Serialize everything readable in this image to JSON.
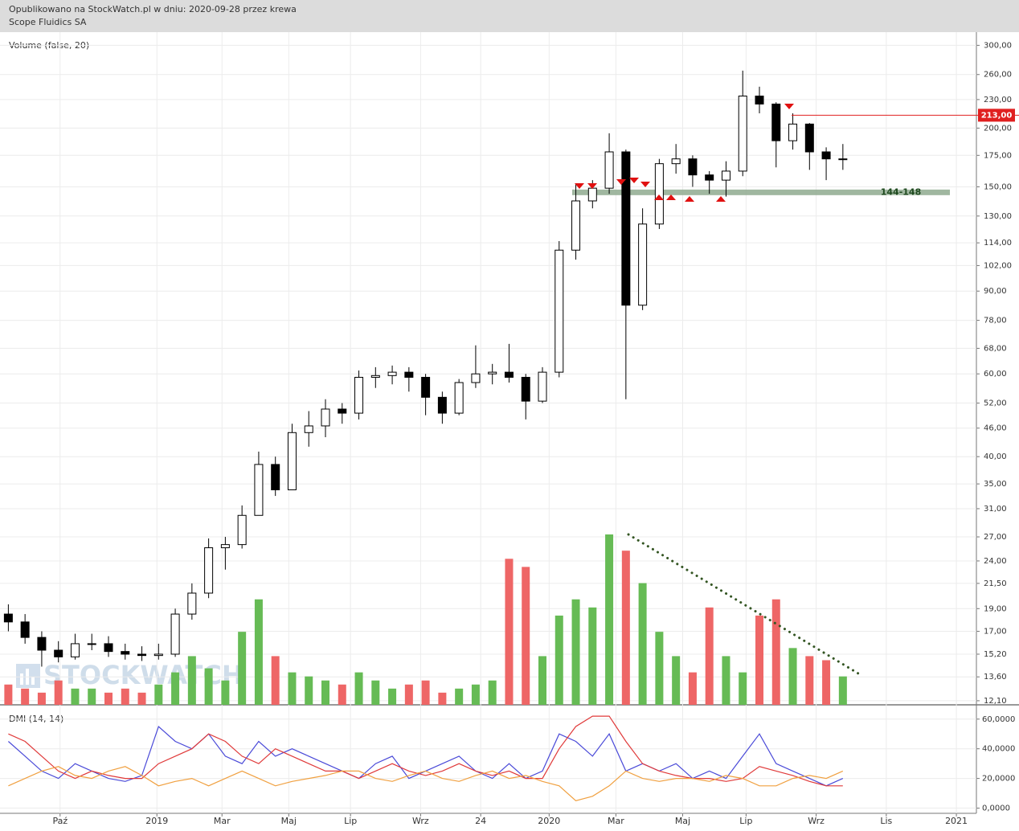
{
  "header": {
    "line1": "Opublikowano na StockWatch.pl w dniu: 2020-09-28 przez krewa",
    "line2": "Scope Fluidics SA"
  },
  "watermark": "STOCKWATCH",
  "chart_data": [
    {
      "type": "candlestick",
      "log": true,
      "grid": true,
      "xlim": [
        0,
        58.5
      ],
      "xticks": [
        {
          "value": 3.6,
          "label": "Paź"
        },
        {
          "value": 9.4,
          "label": "2019"
        },
        {
          "value": 13.3,
          "label": "Mar"
        },
        {
          "value": 17.3,
          "label": "Maj"
        },
        {
          "value": 21.0,
          "label": "Lip"
        },
        {
          "value": 25.2,
          "label": "Wrz"
        },
        {
          "value": 28.8,
          "label": "24"
        },
        {
          "value": 32.9,
          "label": "2020"
        },
        {
          "value": 36.9,
          "label": "Mar"
        },
        {
          "value": 40.9,
          "label": "Maj"
        },
        {
          "value": 44.7,
          "label": "Lip"
        },
        {
          "value": 48.9,
          "label": "Wrz"
        },
        {
          "value": 53.1,
          "label": "Lis"
        },
        {
          "value": 57.3,
          "label": "2021"
        }
      ],
      "ylim": [
        11.86,
        320
      ],
      "yticks": [
        {
          "value": 12.1,
          "label": "12,10"
        },
        {
          "value": 13.6,
          "label": "13,60"
        },
        {
          "value": 15.2,
          "label": "15,20"
        },
        {
          "value": 17,
          "label": "17,00"
        },
        {
          "value": 19,
          "label": "19,00"
        },
        {
          "value": 21.5,
          "label": "21,50"
        },
        {
          "value": 24,
          "label": "24,00"
        },
        {
          "value": 27,
          "label": "27,00"
        },
        {
          "value": 31,
          "label": "31,00"
        },
        {
          "value": 35,
          "label": "35,00"
        },
        {
          "value": 40,
          "label": "40,00"
        },
        {
          "value": 46,
          "label": "46,00"
        },
        {
          "value": 52,
          "label": "52,00"
        },
        {
          "value": 60,
          "label": "60,00"
        },
        {
          "value": 68,
          "label": "68,00"
        },
        {
          "value": 78,
          "label": "78,00"
        },
        {
          "value": 90,
          "label": "90,00"
        },
        {
          "value": 102,
          "label": "102,00"
        },
        {
          "value": 114,
          "label": "114,00"
        },
        {
          "value": 130,
          "label": "130,00"
        },
        {
          "value": 150,
          "label": "150,00"
        },
        {
          "value": 175,
          "label": "175,00"
        },
        {
          "value": 200,
          "label": "200,00"
        },
        {
          "value": 230,
          "label": "230,00"
        },
        {
          "value": 260,
          "label": "260,00"
        },
        {
          "value": 300,
          "label": "300,00"
        }
      ],
      "x": [
        0.5,
        1.5,
        2.5,
        3.5,
        4.5,
        5.5,
        6.5,
        7.5,
        8.5,
        9.5,
        10.5,
        11.5,
        12.5,
        13.5,
        14.5,
        15.5,
        16.5,
        17.5,
        18.5,
        19.5,
        20.5,
        21.5,
        22.5,
        23.5,
        24.5,
        25.5,
        26.5,
        27.5,
        28.5,
        29.5,
        30.5,
        31.5,
        32.5,
        33.5,
        34.5,
        35.5,
        36.5,
        37.5,
        38.5,
        39.5,
        40.5,
        41.5,
        42.5,
        43.5,
        44.5,
        45.5,
        46.5,
        47.5,
        48.5,
        49.5,
        50.5
      ],
      "open": [
        18.5,
        17.8,
        16.5,
        15.5,
        15.0,
        16.0,
        16.0,
        15.4,
        15.2,
        15.1,
        15.2,
        18.5,
        20.5,
        25.6,
        26,
        30,
        38.5,
        34,
        45,
        46.5,
        50.5,
        49.5,
        59,
        59.5,
        60.5,
        59,
        53.5,
        49.5,
        57.5,
        60,
        60.5,
        59,
        52.5,
        60.5,
        110,
        140,
        149,
        178,
        84,
        125,
        168,
        172,
        159,
        155,
        162,
        234,
        225,
        188,
        204,
        178,
        172
      ],
      "high": [
        19.4,
        18.5,
        17.0,
        16.2,
        16.8,
        16.8,
        16.6,
        16.0,
        15.8,
        16.0,
        19.0,
        21.5,
        26.8,
        27.0,
        31.5,
        41.0,
        40.0,
        47.0,
        50.0,
        53.0,
        52.0,
        61.0,
        62.0,
        62.5,
        62.0,
        60.0,
        55.0,
        58.5,
        69.0,
        63.0,
        69.5,
        60.0,
        62.0,
        115,
        152,
        155,
        195,
        180,
        135,
        172,
        185,
        175,
        162,
        170,
        265,
        245,
        227,
        215,
        205,
        182,
        185
      ],
      "low": [
        17.0,
        16.0,
        14.3,
        14.6,
        14.8,
        15.5,
        15.0,
        14.8,
        14.7,
        14.8,
        15.0,
        18.0,
        20.0,
        23.0,
        25.5,
        30.0,
        33.0,
        34.0,
        42.0,
        44.0,
        47.0,
        48.0,
        56.0,
        57.0,
        55.0,
        49.0,
        47.0,
        49.0,
        56.0,
        57.0,
        57.5,
        48.0,
        52.0,
        59.0,
        105,
        135,
        145,
        53,
        82,
        122,
        160,
        150,
        145,
        143,
        158,
        215,
        165,
        180,
        163,
        155,
        163
      ],
      "close": [
        17.8,
        16.5,
        15.5,
        15.0,
        16.0,
        16.0,
        15.4,
        15.2,
        15.1,
        15.2,
        18.5,
        20.5,
        25.6,
        26,
        30,
        38.5,
        34,
        45,
        46.5,
        50.5,
        49.5,
        59,
        59.5,
        60.5,
        59,
        53.5,
        49.5,
        57.5,
        60,
        60.5,
        59,
        52.5,
        60.5,
        110,
        140,
        149,
        178,
        84,
        125,
        168,
        172,
        159,
        155,
        162,
        234,
        225,
        188,
        204,
        178,
        172,
        172
      ],
      "level": {
        "value": 213,
        "label": "213,00",
        "color": "#e02020"
      },
      "band": {
        "low": 144,
        "high": 148,
        "label": "144-148",
        "color": "#8faa8f"
      }
    },
    {
      "type": "bar",
      "label": "Volume (false, 20)",
      "up_color": "#66bb55",
      "down_color": "#ee6666",
      "values": [
        25,
        20,
        15,
        30,
        20,
        20,
        15,
        20,
        15,
        25,
        40,
        60,
        45,
        30,
        90,
        130,
        60,
        40,
        35,
        30,
        25,
        40,
        30,
        20,
        25,
        30,
        15,
        20,
        25,
        30,
        180,
        170,
        60,
        110,
        130,
        120,
        210,
        190,
        150,
        90,
        60,
        40,
        120,
        60,
        40,
        110,
        130,
        70,
        60,
        55,
        35
      ]
    },
    {
      "type": "line",
      "label": "DMI (14, 14)",
      "ylim": [
        -3.5,
        68
      ],
      "yticks": [
        {
          "value": 0,
          "label": "0,0000"
        },
        {
          "value": 20,
          "label": "20,0000"
        },
        {
          "value": 40,
          "label": "40,0000"
        },
        {
          "value": 60,
          "label": "60,0000"
        }
      ],
      "series": [
        {
          "color": "#4a4ad8",
          "values": [
            45,
            35,
            25,
            20,
            30,
            25,
            20,
            18,
            22,
            55,
            45,
            40,
            50,
            35,
            30,
            45,
            35,
            40,
            35,
            30,
            25,
            20,
            30,
            35,
            20,
            25,
            30,
            35,
            25,
            20,
            30,
            20,
            25,
            50,
            45,
            35,
            50,
            25,
            30,
            25,
            30,
            20,
            25,
            20,
            35,
            50,
            30,
            25,
            20,
            15,
            20
          ]
        },
        {
          "color": "#e03a3a",
          "values": [
            50,
            45,
            35,
            25,
            20,
            25,
            22,
            20,
            20,
            30,
            35,
            40,
            50,
            45,
            35,
            30,
            40,
            35,
            30,
            25,
            25,
            20,
            25,
            30,
            25,
            22,
            25,
            30,
            25,
            22,
            25,
            20,
            20,
            40,
            55,
            62,
            62,
            45,
            30,
            25,
            22,
            20,
            20,
            18,
            20,
            28,
            25,
            22,
            18,
            15,
            15
          ]
        },
        {
          "color": "#f0a040",
          "values": [
            15,
            20,
            25,
            28,
            22,
            20,
            25,
            28,
            22,
            15,
            18,
            20,
            15,
            20,
            25,
            20,
            15,
            18,
            20,
            22,
            25,
            25,
            20,
            18,
            22,
            25,
            20,
            18,
            22,
            25,
            20,
            22,
            18,
            15,
            5,
            8,
            15,
            25,
            20,
            18,
            20,
            20,
            18,
            22,
            20,
            15,
            15,
            20,
            22,
            20,
            25
          ]
        }
      ]
    }
  ]
}
